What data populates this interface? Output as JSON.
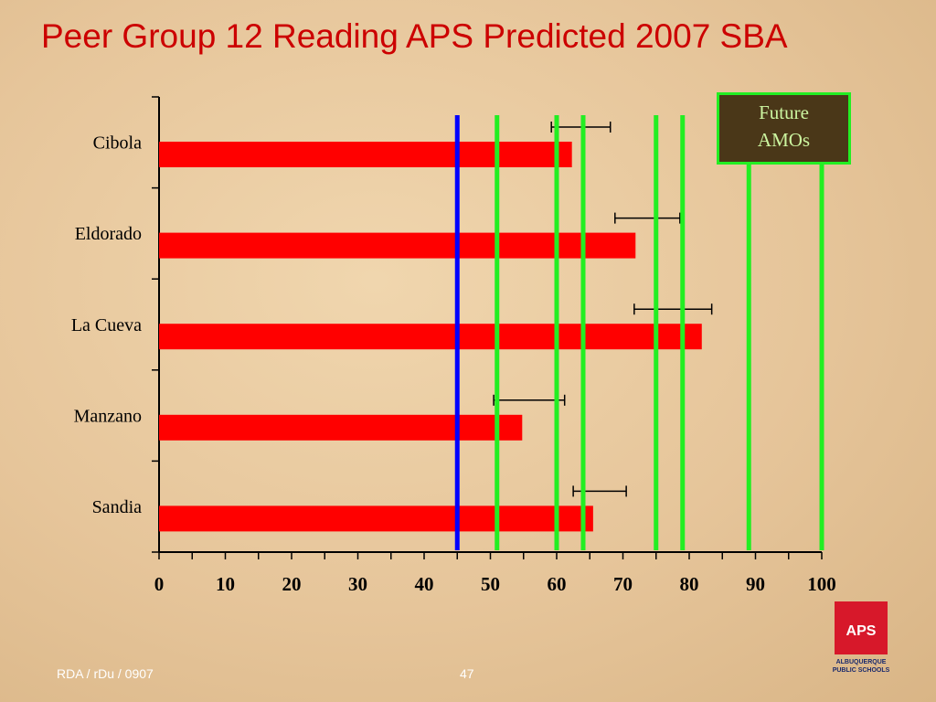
{
  "chart_data": {
    "type": "bar",
    "orientation": "horizontal",
    "title": "Peer Group 12 Reading APS Predicted 2007 SBA",
    "categories": [
      "Cibola",
      "Eldorado",
      "La Cueva",
      "Manzano",
      "Sandia"
    ],
    "values": [
      62.3,
      71.9,
      81.9,
      54.8,
      65.5
    ],
    "color": "#ff0000",
    "intervals": [
      [
        59.2,
        68.1
      ],
      [
        68.8,
        78.6
      ],
      [
        71.7,
        83.4
      ],
      [
        50.5,
        61.2
      ],
      [
        62.5,
        70.5
      ]
    ],
    "reference_lines": [
      {
        "value": 45,
        "color": "#0000ff"
      },
      {
        "value": 51,
        "color": "#22ee22"
      },
      {
        "value": 60,
        "color": "#22ee22"
      },
      {
        "value": 64,
        "color": "#22ee22"
      },
      {
        "value": 75,
        "color": "#22ee22"
      },
      {
        "value": 79,
        "color": "#22ee22"
      },
      {
        "value": 89,
        "color": "#22ee22"
      },
      {
        "value": 100,
        "color": "#22ee22"
      }
    ],
    "legend_text": "Future AMOs",
    "xlim": [
      0,
      100
    ],
    "xticks": [
      0,
      10,
      20,
      30,
      40,
      50,
      60,
      70,
      80,
      90,
      100
    ],
    "xminorticks": [
      5,
      15,
      25,
      35,
      45,
      55,
      65,
      75,
      85,
      95
    ]
  },
  "footer": {
    "left": "RDA / rDu / 0907",
    "page": "47"
  },
  "logo": {
    "mark": "APS",
    "line1": "ALBUQUERQUE",
    "line2": "PUBLIC SCHOOLS"
  }
}
